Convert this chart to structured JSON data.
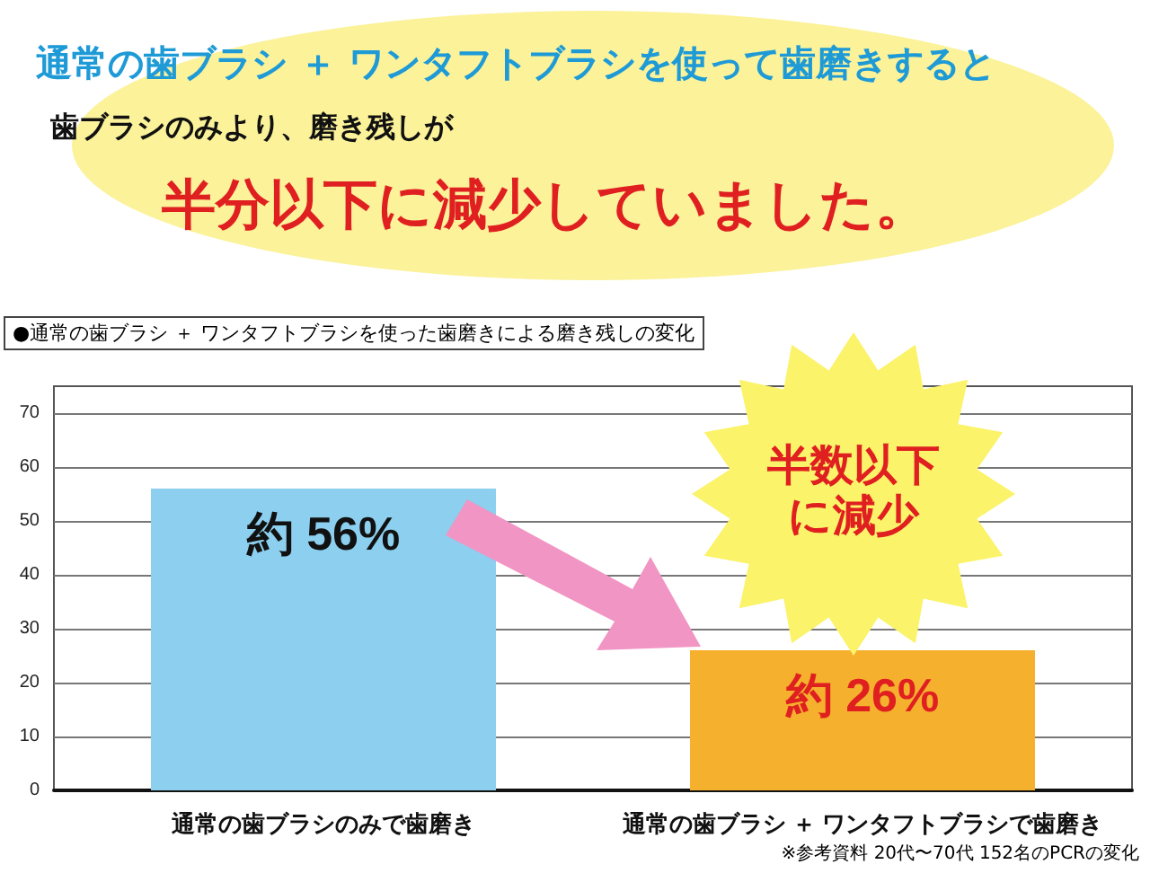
{
  "chart_data": {
    "type": "bar",
    "title": "通常の歯ブラシ ＋ ワンタフトブラシを使って歯磨きすると",
    "subtitle": "歯ブラシのみより、磨き残しが",
    "categories": [
      "通常の歯ブラシのみで歯磨き",
      "通常の歯ブラシ ＋ ワンタフトブラシで歯磨き"
    ],
    "values": [
      56,
      26
    ],
    "colors": [
      "#8ccfef",
      "#f5b02e"
    ],
    "value_labels": [
      "約 56%",
      "約 26%"
    ],
    "ylim": [
      0,
      75
    ],
    "yticks": [
      0,
      10,
      20,
      30,
      40,
      50,
      60,
      70
    ],
    "grid": "y",
    "annotations": [
      "半分以下に減少していました。",
      "●通常の歯ブラシ ＋ ワンタフトブラシを使った歯磨きによる磨き残しの変化",
      "半数以下に減少",
      "※参考資料 20代〜70代 152名のPCRの変化"
    ]
  }
}
